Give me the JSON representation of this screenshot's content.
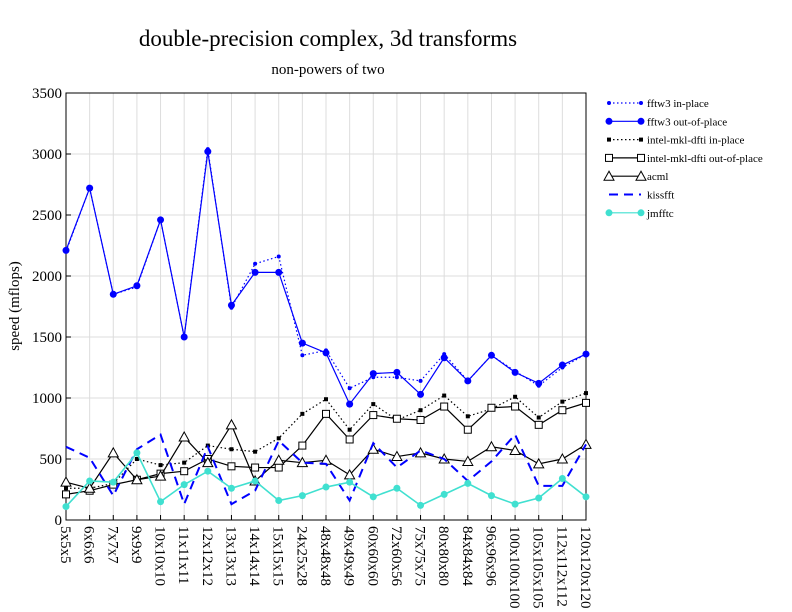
{
  "chart_data": {
    "type": "line",
    "title": "double-precision complex, 3d transforms",
    "subtitle": "non-powers of two",
    "ylabel": "speed (mflops)",
    "xlabel": "",
    "ylim": [
      0,
      3500
    ],
    "yticks": [
      0,
      500,
      1000,
      1500,
      2000,
      2500,
      3000,
      3500
    ],
    "grid": true,
    "legend_position": "top-right",
    "categories": [
      "5x5x5",
      "6x6x6",
      "7x7x7",
      "9x9x9",
      "10x10x10",
      "11x11x11",
      "12x12x12",
      "13x13x13",
      "14x14x14",
      "15x15x15",
      "24x25x28",
      "48x48x48",
      "49x49x49",
      "60x60x60",
      "72x60x56",
      "75x75x75",
      "80x80x80",
      "84x84x84",
      "96x96x96",
      "100x100x100",
      "105x105x105",
      "112x112x112",
      "120x120x120"
    ],
    "series": [
      {
        "name": "fftw3 in-place",
        "color": "#0000ff",
        "style": "dotted",
        "marker": "small-dot",
        "values": [
          2200,
          2720,
          1850,
          1910,
          2460,
          1500,
          3040,
          1740,
          2100,
          2160,
          1350,
          1390,
          1080,
          1170,
          1170,
          1140,
          1360,
          1140,
          1350,
          1220,
          1100,
          1250,
          1360
        ]
      },
      {
        "name": "fftw3 out-of-place",
        "color": "#0000ff",
        "style": "solid",
        "marker": "dot",
        "values": [
          2210,
          2720,
          1850,
          1920,
          2460,
          1500,
          3020,
          1760,
          2030,
          2030,
          1450,
          1370,
          950,
          1200,
          1210,
          1030,
          1330,
          1140,
          1350,
          1210,
          1120,
          1270,
          1360
        ]
      },
      {
        "name": "intel-mkl-dfti in-place",
        "color": "#000000",
        "style": "dotted",
        "marker": "small-square",
        "values": [
          260,
          260,
          300,
          500,
          450,
          470,
          610,
          580,
          560,
          670,
          870,
          990,
          740,
          950,
          820,
          900,
          1020,
          850,
          910,
          1010,
          840,
          970,
          1040
        ]
      },
      {
        "name": "intel-mkl-dfti out-of-place",
        "color": "#000000",
        "style": "solid",
        "marker": "square",
        "values": [
          210,
          240,
          290,
          330,
          380,
          400,
          500,
          440,
          430,
          430,
          610,
          870,
          660,
          860,
          830,
          820,
          930,
          740,
          920,
          930,
          780,
          900,
          960
        ]
      },
      {
        "name": "acml",
        "color": "#000000",
        "style": "solid",
        "marker": "triangle",
        "values": [
          310,
          260,
          550,
          330,
          360,
          680,
          470,
          780,
          320,
          490,
          470,
          490,
          370,
          580,
          520,
          550,
          500,
          480,
          600,
          570,
          460,
          500,
          620
        ]
      },
      {
        "name": "kissfft",
        "color": "#0000ff",
        "style": "dashed",
        "marker": "none",
        "values": [
          600,
          510,
          200,
          580,
          700,
          130,
          600,
          130,
          240,
          650,
          470,
          460,
          160,
          630,
          430,
          570,
          500,
          320,
          480,
          700,
          280,
          280,
          620
        ]
      },
      {
        "name": "jmfftc",
        "color": "#40e0d0",
        "style": "solid",
        "marker": "dot",
        "values": [
          110,
          320,
          310,
          550,
          150,
          290,
          400,
          260,
          320,
          160,
          200,
          270,
          310,
          190,
          260,
          120,
          210,
          300,
          200,
          130,
          180,
          340,
          190
        ]
      }
    ]
  }
}
